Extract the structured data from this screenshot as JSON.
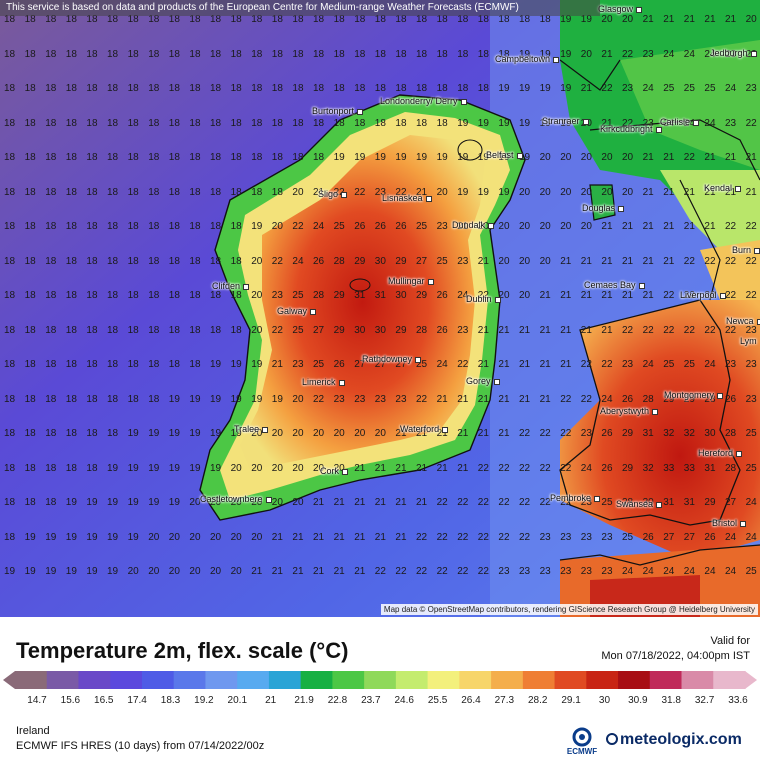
{
  "header": {
    "notice": "This service is based on data and products of the European Centre for Medium-range Weather Forecasts (ECMWF)"
  },
  "map": {
    "attribution": "Map data © OpenStreetMap contributors, rendering GIScience Research Group @ Heidelberg University",
    "cities": [
      {
        "name": "Glasgow"
      },
      {
        "name": "Campbeltown"
      },
      {
        "name": "Jedburgh"
      },
      {
        "name": "Londonderry/ Derry"
      },
      {
        "name": "Burtonport"
      },
      {
        "name": "Stranraer"
      },
      {
        "name": "Kirkcudbright"
      },
      {
        "name": "Carlisle"
      },
      {
        "name": "Belfast"
      },
      {
        "name": "Sligo"
      },
      {
        "name": "Lisnaskea"
      },
      {
        "name": "Kendal"
      },
      {
        "name": "Douglas"
      },
      {
        "name": "Dundalk"
      },
      {
        "name": "Burn"
      },
      {
        "name": "Mullingar"
      },
      {
        "name": "Clifden"
      },
      {
        "name": "Cemaes Bay"
      },
      {
        "name": "Liverpool"
      },
      {
        "name": "Galway"
      },
      {
        "name": "Dublin"
      },
      {
        "name": "Newca"
      },
      {
        "name": "Lym"
      },
      {
        "name": "Rathdowney"
      },
      {
        "name": "Limerick"
      },
      {
        "name": "Gorey"
      },
      {
        "name": "Montgomery"
      },
      {
        "name": "Aberystwyth"
      },
      {
        "name": "Tralee"
      },
      {
        "name": "Waterford"
      },
      {
        "name": "Hereford"
      },
      {
        "name": "Cork"
      },
      {
        "name": "Castletownbere"
      },
      {
        "name": "Pembroke"
      },
      {
        "name": "Swansea"
      },
      {
        "name": "Bristol"
      }
    ]
  },
  "legend": {
    "title": "Temperature 2m, flex. scale (°C)",
    "valid_label": "Valid for",
    "valid_time": "Mon 07/18/2022, 04:00pm IST",
    "ticks": [
      "14.7",
      "15.6",
      "16.5",
      "17.4",
      "18.3",
      "19.2",
      "20.1",
      "21",
      "21.9",
      "22.8",
      "23.7",
      "24.6",
      "25.5",
      "26.4",
      "27.3",
      "28.2",
      "29.1",
      "30",
      "30.9",
      "31.8",
      "32.7",
      "33.6"
    ],
    "colors": [
      "#8a6a78",
      "#7a5aa6",
      "#6a48c8",
      "#5b48dd",
      "#4e5be6",
      "#5a78ea",
      "#6f98ef",
      "#58aaf0",
      "#2aa4d6",
      "#17b043",
      "#4cc745",
      "#8fd95a",
      "#c4ec6e",
      "#f3f07c",
      "#f7d56a",
      "#f4ae4c",
      "#ef7e34",
      "#e04a22",
      "#c82414",
      "#a80e14",
      "#c02a5a",
      "#d98aa8",
      "#e8b8cc"
    ]
  },
  "footer": {
    "region": "Ireland",
    "model": "ECMWF IFS HRES (10 days) from 07/14/2022/00z",
    "ecmwf_label": "ECMWF",
    "brand": "meteologix.com"
  }
}
